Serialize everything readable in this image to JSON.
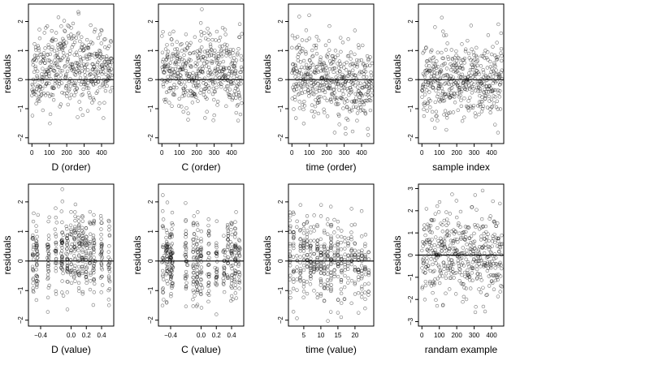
{
  "figure": {
    "background": "#ffffff",
    "foreground": "#000000",
    "point_style": "open-circle"
  },
  "chart_data": [
    {
      "id": "d_order",
      "type": "scatter",
      "xlabel": "D (order)",
      "ylabel": "residuals",
      "xlim": [
        -20,
        470
      ],
      "ylim": [
        -2.2,
        2.6
      ],
      "xticks": [
        0,
        100,
        200,
        300,
        400
      ],
      "yticks": [
        -2,
        -1,
        0,
        1,
        2
      ],
      "reference_line": {
        "y": 0
      },
      "trend": {
        "kind": "hump",
        "amp": 0.45,
        "center": 240,
        "width": 260
      },
      "points": {
        "count": 460,
        "x_kind": "index",
        "x_range": [
          0,
          460
        ],
        "sd": 0.65,
        "seed": 11
      }
    },
    {
      "id": "c_order",
      "type": "scatter",
      "xlabel": "C (order)",
      "ylabel": "residuals",
      "xlim": [
        -20,
        470
      ],
      "ylim": [
        -2.2,
        2.6
      ],
      "xticks": [
        0,
        100,
        200,
        300,
        400
      ],
      "yticks": [
        -2,
        -1,
        0,
        1,
        2
      ],
      "reference_line": {
        "y": 0
      },
      "trend": {
        "kind": "hump",
        "amp": 0.3,
        "center": 180,
        "width": 300
      },
      "points": {
        "count": 460,
        "x_kind": "index",
        "x_range": [
          0,
          460
        ],
        "sd": 0.65,
        "seed": 23
      }
    },
    {
      "id": "time_order",
      "type": "scatter",
      "xlabel": "time (order)",
      "ylabel": "residuals",
      "xlim": [
        -20,
        470
      ],
      "ylim": [
        -2.2,
        2.6
      ],
      "xticks": [
        0,
        100,
        200,
        300,
        400
      ],
      "yticks": [
        -2,
        -1,
        0,
        1,
        2
      ],
      "reference_line": {
        "y": 0
      },
      "trend": {
        "kind": "slope",
        "amp": 0.35,
        "center": 230,
        "width": 230
      },
      "points": {
        "count": 460,
        "x_kind": "index",
        "x_range": [
          0,
          460
        ],
        "sd": 0.65,
        "seed": 37
      }
    },
    {
      "id": "sample_index",
      "type": "scatter",
      "xlabel": "sample index",
      "ylabel": "residuals",
      "xlim": [
        -20,
        470
      ],
      "ylim": [
        -2.2,
        2.6
      ],
      "xticks": [
        0,
        100,
        200,
        300,
        400
      ],
      "yticks": [
        -2,
        -1,
        0,
        1,
        2
      ],
      "reference_line": {
        "y": 0
      },
      "trend": {
        "kind": "none",
        "amp": 0,
        "center": 0,
        "width": 1
      },
      "points": {
        "count": 460,
        "x_kind": "index",
        "x_range": [
          0,
          460
        ],
        "sd": 0.65,
        "seed": 41
      }
    },
    {
      "id": "d_value",
      "type": "scatter",
      "xlabel": "D (value)",
      "ylabel": "residuals",
      "xlim": [
        -0.56,
        0.56
      ],
      "ylim": [
        -2.2,
        2.6
      ],
      "xticks": [
        -0.4,
        0.0,
        0.2,
        0.4
      ],
      "xtick_labels": [
        "-0.4",
        "0.0",
        "0.2",
        "0.4"
      ],
      "yticks": [
        -2,
        -1,
        0,
        1,
        2
      ],
      "reference_line": {
        "y": 0
      },
      "trend": {
        "kind": "hump",
        "amp": 0.4,
        "center": 0.05,
        "width": 0.35
      },
      "points": {
        "count": 460,
        "x_kind": "clustered",
        "clusters": [
          -0.5,
          -0.45,
          -0.3,
          -0.2,
          -0.12,
          -0.05,
          0.0,
          0.05,
          0.1,
          0.15,
          0.2,
          0.25,
          0.3,
          0.4,
          0.5
        ],
        "jitter": 0.006,
        "sd": 0.65,
        "seed": 53
      }
    },
    {
      "id": "c_value",
      "type": "scatter",
      "xlabel": "C (value)",
      "ylabel": "residuals",
      "xlim": [
        -0.56,
        0.56
      ],
      "ylim": [
        -2.2,
        2.6
      ],
      "xticks": [
        -0.4,
        0.0,
        0.2,
        0.4
      ],
      "xtick_labels": [
        "-0.4",
        "0.0",
        "0.2",
        "0.4"
      ],
      "yticks": [
        -2,
        -1,
        0,
        1,
        2
      ],
      "reference_line": {
        "y": 0
      },
      "trend": {
        "kind": "none",
        "amp": 0,
        "center": 0,
        "width": 1
      },
      "points": {
        "count": 460,
        "x_kind": "clustered",
        "clusters": [
          -0.5,
          -0.45,
          -0.4,
          -0.38,
          -0.2,
          -0.1,
          -0.05,
          0.0,
          0.1,
          0.2,
          0.3,
          0.35,
          0.4,
          0.45,
          0.5
        ],
        "jitter": 0.006,
        "sd": 0.7,
        "seed": 67
      }
    },
    {
      "id": "time_value",
      "type": "scatter",
      "xlabel": "time (value)",
      "ylabel": "residuals",
      "xlim": [
        0.5,
        25.5
      ],
      "ylim": [
        -2.2,
        2.6
      ],
      "xticks": [
        5,
        10,
        15,
        20
      ],
      "yticks": [
        -2,
        -1,
        0,
        1,
        2
      ],
      "reference_line": {
        "y": 0
      },
      "trend": {
        "kind": "slope",
        "amp": 0.3,
        "center": 12,
        "width": 12
      },
      "points": {
        "count": 460,
        "x_kind": "clustered",
        "clusters": [
          1,
          2,
          3,
          4,
          5,
          6,
          7,
          8,
          9,
          10,
          11,
          12,
          13,
          14,
          15,
          16,
          17,
          18,
          19,
          20,
          21,
          22,
          23,
          24
        ],
        "jitter": 0.05,
        "sd": 0.7,
        "seed": 79
      }
    },
    {
      "id": "random_example",
      "type": "scatter",
      "xlabel": "randam example",
      "ylabel": "residuals",
      "xlim": [
        -20,
        470
      ],
      "ylim": [
        -3.2,
        3.2
      ],
      "xticks": [
        0,
        100,
        200,
        300,
        400
      ],
      "yticks": [
        -3,
        -2,
        -1,
        0,
        1,
        2,
        3
      ],
      "reference_line": {
        "y": 0
      },
      "trend": {
        "kind": "none",
        "amp": 0,
        "center": 0,
        "width": 1
      },
      "points": {
        "count": 460,
        "x_kind": "index",
        "x_range": [
          0,
          460
        ],
        "sd": 1.0,
        "seed": 97
      }
    }
  ]
}
